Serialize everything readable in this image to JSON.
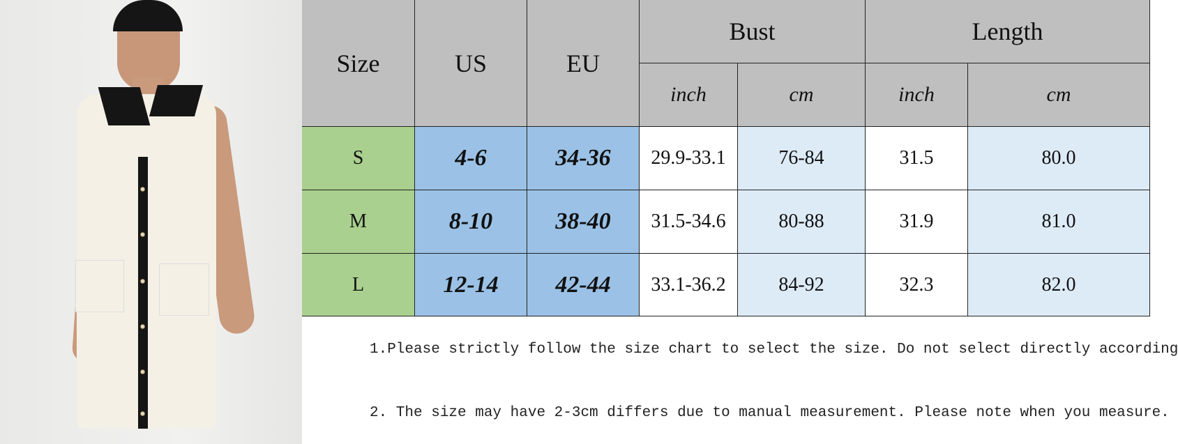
{
  "size_chart": {
    "headers": {
      "size": "Size",
      "us": "US",
      "eu": "EU",
      "bust": "Bust",
      "length": "Length",
      "bust_inch": "inch",
      "bust_cm": "cm",
      "length_inch": "inch",
      "length_cm": "cm"
    },
    "rows": [
      {
        "size": "S",
        "us": "4-6",
        "eu": "34-36",
        "bust_inch": "29.9-33.1",
        "bust_cm": "76-84",
        "length_inch": "31.5",
        "length_cm": "80.0"
      },
      {
        "size": "M",
        "us": "8-10",
        "eu": "38-40",
        "bust_inch": "31.5-34.6",
        "bust_cm": "80-88",
        "length_inch": "31.9",
        "length_cm": "81.0"
      },
      {
        "size": "L",
        "us": "12-14",
        "eu": "42-44",
        "bust_inch": "33.1-36.2",
        "bust_cm": "84-92",
        "length_inch": "32.3",
        "length_cm": "82.0"
      }
    ],
    "colors": {
      "header": "#bfbfbf",
      "size_col": "#a9d08e",
      "us_eu_cols": "#9bc2e6",
      "cm_cols": "#ddebf7"
    }
  },
  "notes": [
    "1.Please strictly follow the size chart to select the size. Do not select directly according",
    "2. The size may have 2-3cm differs due to manual measurement. Please note when you measure."
  ]
}
